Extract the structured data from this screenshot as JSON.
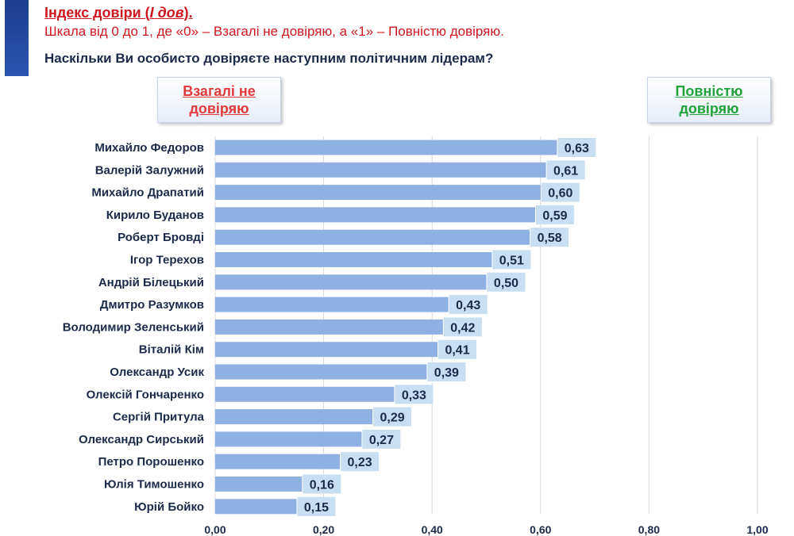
{
  "header": {
    "title_main": "Індекс довіри (",
    "title_italic": "І дов",
    "title_end": ").",
    "subtitle": "Шкала від 0 до 1, де «0» – Взагалі не довіряю, а «1» – Повністю довіряю.",
    "question": "Наскільки Ви особисто довіряєте наступним політичним лідерам?"
  },
  "scale_labels": {
    "low_line1": "Взагалі не",
    "low_line2": "довіряю",
    "high_line1": "Повністю",
    "high_line2": "довіряю"
  },
  "colors": {
    "bar": "#8fb0e3",
    "label_box": "#c8def2",
    "title_red": "#d0161f",
    "low_red": "#e03a3a",
    "high_green": "#1fa33a",
    "text_dark": "#1b2a4a",
    "accent": "#1c3f8f"
  },
  "chart_data": {
    "type": "bar",
    "orientation": "horizontal",
    "categories": [
      "Михайло Федоров",
      "Валерій Залужний",
      "Михайло Драпатий",
      "Кирило Буданов",
      "Роберт Бровді",
      "Ігор Терехов",
      "Андрій Білецький",
      "Дмитро Разумков",
      "Володимир Зеленський",
      "Віталій Кім",
      "Олександр Усик",
      "Олексій Гончаренко",
      "Сергій Притула",
      "Олександр Сирський",
      "Петро Порошенко",
      "Юлія Тимошенко",
      "Юрій Бойко"
    ],
    "values": [
      0.63,
      0.61,
      0.6,
      0.59,
      0.58,
      0.51,
      0.5,
      0.43,
      0.42,
      0.41,
      0.39,
      0.33,
      0.29,
      0.27,
      0.23,
      0.16,
      0.15
    ],
    "value_labels": [
      "0,63",
      "0,61",
      "0,60",
      "0,59",
      "0,58",
      "0,51",
      "0,50",
      "0,43",
      "0,42",
      "0,41",
      "0,39",
      "0,33",
      "0,29",
      "0,27",
      "0,23",
      "0,16",
      "0,15"
    ],
    "xlim": [
      0,
      1
    ],
    "xticks": [
      0,
      0.2,
      0.4,
      0.6,
      0.8,
      1.0
    ],
    "xtick_labels": [
      "0,00",
      "0,20",
      "0,40",
      "0,60",
      "0,80",
      "1,00"
    ],
    "grid": true
  }
}
